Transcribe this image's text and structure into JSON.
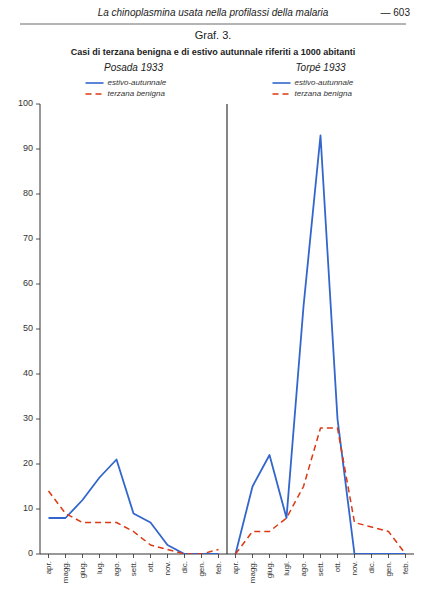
{
  "chart_data": {
    "type": "line",
    "title": "Casi di terzana benigna e di estivo autunnale riferiti a 1000 abitanti",
    "annotations": [
      "La chinoplasmina usata nella profilassi della malaria",
      "— 603",
      "Graf. 3.",
      "Posada 1933",
      "Torpé 1933"
    ],
    "categories": [
      "apr.",
      "magg.",
      "giug.",
      "lug.",
      "ago.",
      "sett.",
      "ott.",
      "nov.",
      "dic.",
      "gen.",
      "feb.",
      "apr.",
      "magg.",
      "giug.",
      "lugl.",
      "ago.",
      "sett.",
      "ott.",
      "nov.",
      "dic.",
      "gen.",
      "feb."
    ],
    "series": [
      {
        "name": "estivo-autunnale",
        "line_style": "solid",
        "values": [
          8,
          8,
          12,
          17,
          21,
          9,
          7,
          2,
          0,
          0,
          0,
          null,
          null,
          null,
          null,
          null,
          null,
          null,
          null,
          null,
          null,
          null
        ]
      },
      {
        "name": "terzana benigna",
        "line_style": "dashed",
        "values": [
          14,
          9,
          7,
          7,
          7,
          5,
          2,
          1,
          0,
          0,
          1,
          null,
          null,
          null,
          null,
          null,
          null,
          null,
          null,
          null,
          null,
          null
        ]
      },
      {
        "name": "estivo-autunnale",
        "line_style": "solid",
        "values": [
          null,
          null,
          null,
          null,
          null,
          null,
          null,
          null,
          null,
          null,
          null,
          0,
          15,
          22,
          8,
          55,
          93,
          30,
          0,
          0,
          0,
          0
        ]
      },
      {
        "name": "terzana benigna",
        "line_style": "dashed",
        "values": [
          null,
          null,
          null,
          null,
          null,
          null,
          null,
          null,
          null,
          null,
          null,
          0,
          5,
          5,
          8,
          15,
          28,
          28,
          7,
          6,
          5,
          0
        ]
      }
    ],
    "ylim": [
      0,
      100
    ],
    "yticks": [
      0,
      10,
      20,
      30,
      40,
      50,
      60,
      70,
      80,
      90,
      100
    ],
    "grid": false,
    "legend": "top"
  }
}
